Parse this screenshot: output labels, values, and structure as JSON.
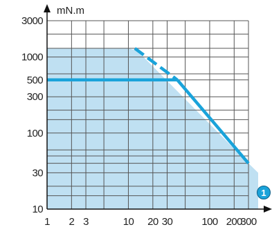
{
  "chart_data": {
    "type": "area",
    "title": "",
    "ylabel": "mN.m",
    "xlabel": "",
    "x_scale": "log",
    "y_scale": "log",
    "xlim": [
      1,
      300
    ],
    "ylim": [
      10,
      3000
    ],
    "x_ticks": [
      {
        "value": 1,
        "label": "1"
      },
      {
        "value": 2,
        "label": "2"
      },
      {
        "value": 3,
        "label": "3"
      },
      {
        "value": 10,
        "label": "10"
      },
      {
        "value": 20,
        "label": "20"
      },
      {
        "value": 30,
        "label": "30"
      },
      {
        "value": 100,
        "label": "100"
      },
      {
        "value": 200,
        "label": "200"
      },
      {
        "value": 300,
        "label": "300"
      }
    ],
    "y_ticks": [
      {
        "value": 3000,
        "label": "3000"
      },
      {
        "value": 1000,
        "label": "1000"
      },
      {
        "value": 500,
        "label": "500"
      },
      {
        "value": 300,
        "label": "300"
      },
      {
        "value": 100,
        "label": "100"
      },
      {
        "value": 30,
        "label": "30"
      },
      {
        "value": 10,
        "label": "10"
      }
    ],
    "grid": true,
    "colors": {
      "area": "#bfe0f2",
      "line": "#1aa3da",
      "grid": "#555555",
      "axis": "#111111"
    },
    "area": {
      "name": "",
      "x": [
        1,
        10,
        13,
        300,
        400
      ],
      "y": [
        1300,
        1300,
        1200,
        40,
        30
      ]
    },
    "series": [
      {
        "name": "",
        "style": "solid",
        "x": [
          1,
          40
        ],
        "y": [
          500,
          500
        ]
      },
      {
        "name": "",
        "style": "dashed",
        "x": [
          12,
          40
        ],
        "y": [
          1300,
          500
        ]
      },
      {
        "name": "",
        "style": "solid",
        "x": [
          40,
          300
        ],
        "y": [
          500,
          40
        ]
      }
    ],
    "annotations": [
      {
        "label": "1",
        "anchor": "x-axis end",
        "shape": "circle"
      }
    ]
  }
}
